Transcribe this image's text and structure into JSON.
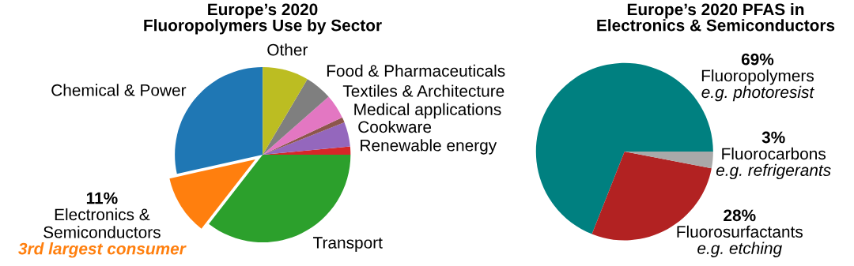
{
  "chart_data": [
    {
      "type": "pie",
      "title": "Europe’s 2020\nFluoropolymers Use by Sector",
      "categories": [
        "Chemical & Power",
        "Electronics &\nSemiconductors",
        "Transport",
        "Renewable energy",
        "Cookware",
        "Medical applications",
        "Textiles & Architecture",
        "Food & Pharmaceuticals",
        "Other"
      ],
      "values": [
        28.5,
        11,
        35.5,
        1.5,
        4.5,
        1,
        4.5,
        5,
        8.5
      ],
      "colors": [
        "#1f77b4",
        "#ff7f0e",
        "#2ca02c",
        "#d62728",
        "#9467bd",
        "#8c564b",
        "#e377c2",
        "#7f7f7f",
        "#bcbd22"
      ],
      "value_labels": [
        null,
        "11%",
        null,
        null,
        null,
        null,
        null,
        null,
        null
      ],
      "annotations": [
        {
          "text": "3rd largest consumer",
          "x": "Electronics &\nSemiconductors"
        }
      ]
    },
    {
      "type": "pie",
      "title": "Europe’s 2020 PFAS in\nElectronics & Semiconductors",
      "categories": [
        "Fluoropolymers",
        "Fluorosurfactants",
        "Fluorocarbons"
      ],
      "values": [
        69,
        28,
        3
      ],
      "colors": [
        "#008080",
        "#b22222",
        "#a9a9a9"
      ],
      "value_labels": [
        "69%",
        "28%",
        "3%"
      ],
      "annotations": [
        {
          "text": "e.g. photoresist",
          "x": "Fluoropolymers"
        },
        {
          "text": "e.g. etching",
          "x": "Fluorosurfactants"
        },
        {
          "text": "e.g. refrigerants",
          "x": "Fluorocarbons"
        }
      ]
    }
  ]
}
